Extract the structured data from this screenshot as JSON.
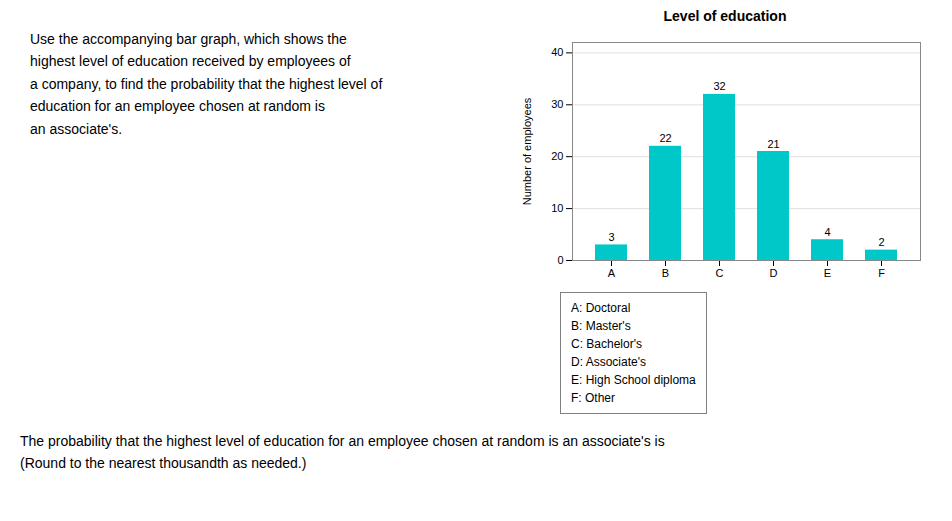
{
  "chart_data": {
    "type": "bar",
    "title": "Level of education",
    "categories": [
      "A",
      "B",
      "C",
      "D",
      "E",
      "F"
    ],
    "values": [
      3,
      22,
      32,
      21,
      4,
      2
    ],
    "color": "#00C8C8",
    "ylabel": "Number of employees",
    "ylim": [
      0,
      42
    ],
    "yticks": [
      0,
      10,
      20,
      30,
      40
    ],
    "grid": true,
    "data_labels": true,
    "annotations": [
      [
        "Use the accompanying bar graph, which shows the",
        "highest level of education received by employees of",
        "a company, to find the probability that the highest level of",
        "education for an employee chosen at random is",
        "an associate's."
      ],
      [
        "A: Doctoral",
        "B: Master's",
        "C: Bachelor's",
        "D: Associate's",
        "E: High School diploma",
        "F: Other"
      ],
      [
        "The probability that the highest level of education for an employee chosen at random is an associate's is",
        "(Round to the nearest thousandth as needed.)"
      ]
    ]
  }
}
